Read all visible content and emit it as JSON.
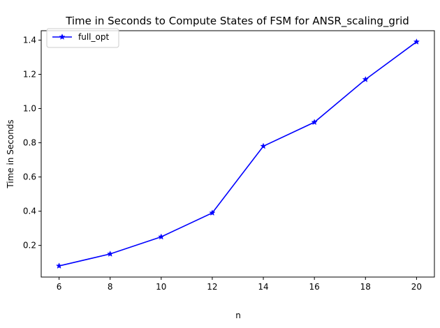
{
  "chart_data": {
    "type": "line",
    "title": "Time in Seconds to Compute States of FSM for ANSR_scaling_grid",
    "xlabel": "n",
    "ylabel": "Time in Seconds",
    "x": [
      6,
      8,
      10,
      12,
      14,
      16,
      18,
      20
    ],
    "series": [
      {
        "name": "full_opt",
        "values": [
          0.08,
          0.15,
          0.25,
          0.39,
          0.78,
          0.92,
          1.17,
          1.39
        ]
      }
    ],
    "xlim": [
      5.3,
      20.7
    ],
    "ylim": [
      0.015,
      1.455
    ],
    "xticks": [
      "6",
      "8",
      "10",
      "12",
      "14",
      "16",
      "18",
      "20"
    ],
    "yticks": [
      "0.2",
      "0.4",
      "0.6",
      "0.8",
      "1.0",
      "1.2",
      "1.4"
    ],
    "grid": false,
    "legend_position": "top-left",
    "colors": {
      "series": "#0000ff",
      "axes": "#000000",
      "background": "#ffffff"
    },
    "marker": "star"
  }
}
